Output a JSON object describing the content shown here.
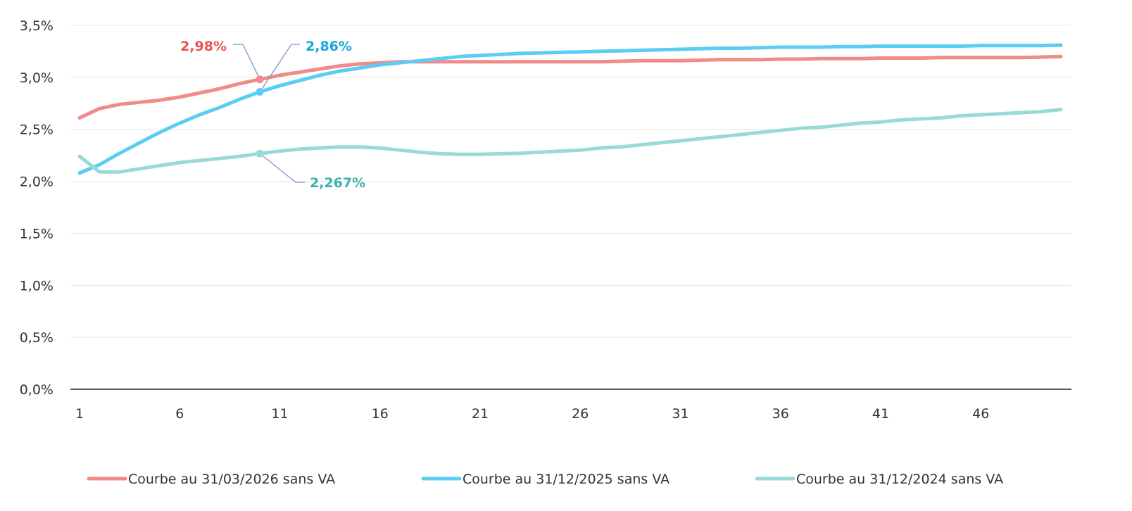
{
  "chart_data": {
    "type": "line",
    "title": "",
    "xlabel": "",
    "ylabel": "",
    "x": [
      1,
      2,
      3,
      4,
      5,
      6,
      7,
      8,
      9,
      10,
      11,
      12,
      13,
      14,
      15,
      16,
      17,
      18,
      19,
      20,
      21,
      22,
      23,
      24,
      25,
      26,
      27,
      28,
      29,
      30,
      31,
      32,
      33,
      34,
      35,
      36,
      37,
      38,
      39,
      40,
      41,
      42,
      43,
      44,
      45,
      46,
      47,
      48,
      49,
      50
    ],
    "x_ticks": [
      1,
      6,
      11,
      16,
      21,
      26,
      31,
      36,
      41,
      46
    ],
    "x_tick_labels": [
      "1",
      "6",
      "11",
      "16",
      "21",
      "26",
      "31",
      "36",
      "41",
      "46"
    ],
    "xlim": [
      1,
      50
    ],
    "ylim": [
      0,
      3.5
    ],
    "y_ticks": [
      0,
      0.5,
      1.0,
      1.5,
      2.0,
      2.5,
      3.0,
      3.5
    ],
    "y_tick_labels": [
      "0,0%",
      "0,5%",
      "1,0%",
      "1,5%",
      "2,0%",
      "2,5%",
      "3,0%",
      "3,5%"
    ],
    "grid": "horizontal",
    "legend_position": "bottom",
    "series": [
      {
        "name": "Courbe au 31/03/2026 sans VA",
        "color": "#F08B8A",
        "label_color": "#E8534F",
        "values": [
          2.61,
          2.7,
          2.74,
          2.76,
          2.78,
          2.81,
          2.85,
          2.89,
          2.94,
          2.98,
          3.02,
          3.05,
          3.08,
          3.11,
          3.13,
          3.14,
          3.15,
          3.15,
          3.15,
          3.15,
          3.15,
          3.15,
          3.15,
          3.15,
          3.15,
          3.15,
          3.15,
          3.155,
          3.16,
          3.16,
          3.16,
          3.165,
          3.17,
          3.17,
          3.17,
          3.175,
          3.175,
          3.18,
          3.18,
          3.18,
          3.185,
          3.185,
          3.185,
          3.19,
          3.19,
          3.19,
          3.19,
          3.19,
          3.195,
          3.2
        ]
      },
      {
        "name": "Courbe au 31/12/2025 sans VA",
        "color": "#5BCDF3",
        "label_color": "#16A9DA",
        "values": [
          2.08,
          2.16,
          2.27,
          2.37,
          2.47,
          2.56,
          2.64,
          2.71,
          2.79,
          2.86,
          2.92,
          2.97,
          3.02,
          3.06,
          3.09,
          3.12,
          3.14,
          3.16,
          3.18,
          3.2,
          3.21,
          3.22,
          3.23,
          3.235,
          3.24,
          3.245,
          3.25,
          3.255,
          3.26,
          3.265,
          3.27,
          3.275,
          3.28,
          3.28,
          3.285,
          3.29,
          3.29,
          3.29,
          3.295,
          3.295,
          3.3,
          3.3,
          3.3,
          3.3,
          3.3,
          3.305,
          3.305,
          3.305,
          3.305,
          3.31
        ]
      },
      {
        "name": "Courbe au 31/12/2024 sans VA",
        "color": "#99D9D6",
        "label_color": "#3BB1AE",
        "values": [
          2.24,
          2.09,
          2.09,
          2.12,
          2.15,
          2.18,
          2.2,
          2.22,
          2.24,
          2.267,
          2.29,
          2.31,
          2.32,
          2.33,
          2.33,
          2.32,
          2.3,
          2.28,
          2.265,
          2.26,
          2.26,
          2.265,
          2.27,
          2.28,
          2.29,
          2.3,
          2.32,
          2.33,
          2.35,
          2.37,
          2.39,
          2.41,
          2.43,
          2.45,
          2.47,
          2.49,
          2.51,
          2.52,
          2.54,
          2.56,
          2.57,
          2.59,
          2.6,
          2.61,
          2.63,
          2.64,
          2.65,
          2.66,
          2.67,
          2.69
        ]
      }
    ],
    "annotations": [
      {
        "series_index": 0,
        "x": 10,
        "y": 2.98,
        "text": "2,98%"
      },
      {
        "series_index": 1,
        "x": 10,
        "y": 2.86,
        "text": "2,86%"
      },
      {
        "series_index": 2,
        "x": 10,
        "y": 2.267,
        "text": "2,267%"
      }
    ]
  }
}
